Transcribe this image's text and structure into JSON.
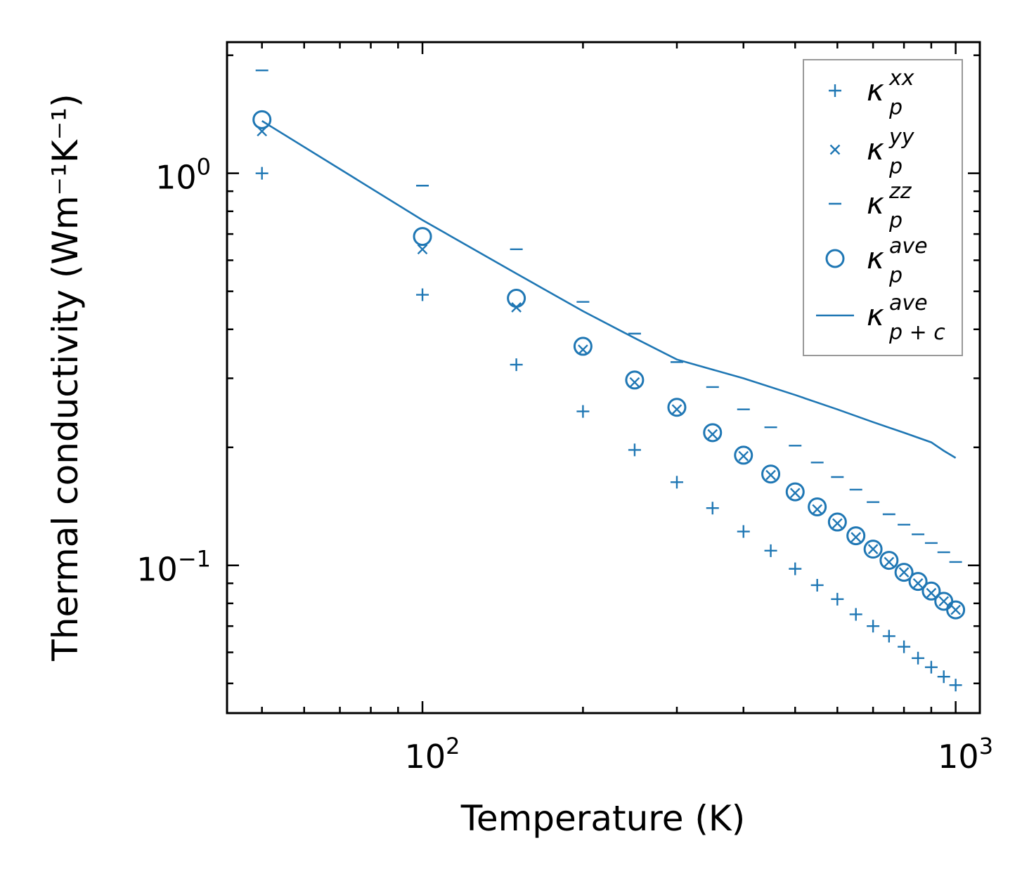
{
  "chart_data": {
    "type": "scatter",
    "scale": {
      "x": "log",
      "y": "log"
    },
    "xlabel": "Temperature (K)",
    "ylabel": "Thermal conductivity (Wm⁻¹K⁻¹)",
    "xlim": [
      43,
      1110
    ],
    "ylim": [
      0.042,
      2.16
    ],
    "x_ticks": [
      {
        "value": 100,
        "base": "10",
        "exp": "2"
      },
      {
        "value": 1000,
        "base": "10",
        "exp": "3"
      }
    ],
    "y_ticks": [
      {
        "value": 0.1,
        "base": "10",
        "exp": "−1"
      },
      {
        "value": 1,
        "base": "10",
        "exp": "0"
      }
    ],
    "color": "#1f77b4",
    "legend_position": "top-right",
    "x": [
      50,
      100,
      150,
      200,
      250,
      300,
      350,
      400,
      450,
      500,
      550,
      600,
      650,
      700,
      750,
      800,
      850,
      900,
      950,
      1000
    ],
    "series": [
      {
        "key": "kxx",
        "marker": "plus",
        "label_base": "κ",
        "label_sup": "xx",
        "label_sub": "p",
        "values": [
          1.0,
          0.49,
          0.325,
          0.247,
          0.197,
          0.163,
          0.14,
          0.122,
          0.109,
          0.098,
          0.089,
          0.082,
          0.075,
          0.07,
          0.066,
          0.062,
          0.058,
          0.055,
          0.052,
          0.0495
        ]
      },
      {
        "key": "kyy",
        "marker": "x",
        "label_base": "κ",
        "label_sup": "yy",
        "label_sub": "p",
        "values": [
          1.28,
          0.64,
          0.455,
          0.355,
          0.293,
          0.25,
          0.216,
          0.19,
          0.17,
          0.153,
          0.139,
          0.128,
          0.118,
          0.11,
          0.102,
          0.096,
          0.09,
          0.085,
          0.081,
          0.077
        ]
      },
      {
        "key": "kzz",
        "marker": "dash",
        "label_base": "κ",
        "label_sup": "zz",
        "label_sub": "p",
        "values": [
          1.83,
          0.93,
          0.64,
          0.47,
          0.39,
          0.33,
          0.285,
          0.25,
          0.225,
          0.202,
          0.183,
          0.168,
          0.156,
          0.145,
          0.135,
          0.127,
          0.12,
          0.114,
          0.108,
          0.102
        ]
      },
      {
        "key": "kave",
        "marker": "circle",
        "label_base": "κ",
        "label_sup": "ave",
        "label_sub": "p",
        "values": [
          1.37,
          0.69,
          0.48,
          0.362,
          0.297,
          0.253,
          0.218,
          0.191,
          0.171,
          0.154,
          0.141,
          0.129,
          0.119,
          0.11,
          0.103,
          0.096,
          0.091,
          0.086,
          0.081,
          0.077
        ]
      },
      {
        "key": "kpc",
        "marker": "line",
        "label_base": "κ",
        "label_sup": "ave",
        "label_sub": "p + c",
        "values": [
          1.36,
          0.76,
          0.555,
          0.445,
          0.38,
          0.335,
          0.3,
          0.272,
          0.25,
          0.232,
          0.218,
          0.206,
          0.196,
          0.188
        ],
        "x": [
          50,
          100,
          150,
          200,
          250,
          300,
          400,
          500,
          600,
          700,
          800,
          900,
          950,
          1000
        ]
      }
    ]
  }
}
